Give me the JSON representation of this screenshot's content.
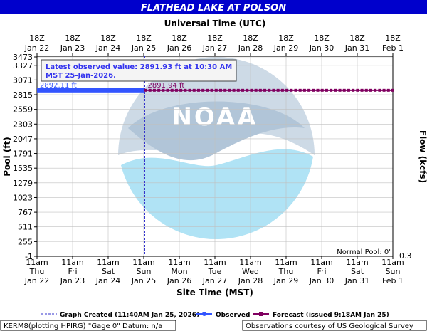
{
  "chart_data": {
    "type": "line",
    "title": "FLATHEAD LAKE AT POLSON",
    "top_axis_title": "Universal Time (UTC)",
    "xlabel": "Site Time (MST)",
    "ylabel": "Pool (ft)",
    "ylabel_right": "Flow (kcfs)",
    "y_ticks": [
      "3473",
      "3327",
      "3071",
      "2815",
      "2559",
      "2303",
      "2047",
      "1791",
      "1535",
      "1279",
      "1023",
      "767",
      "511",
      "255",
      "-1"
    ],
    "ylim": [
      -1,
      3473
    ],
    "right_tick": "0.3",
    "top_ticks": [
      {
        "hour": "18Z",
        "date": "Jan 22"
      },
      {
        "hour": "18Z",
        "date": "Jan 23"
      },
      {
        "hour": "18Z",
        "date": "Jan 24"
      },
      {
        "hour": "18Z",
        "date": "Jan 25"
      },
      {
        "hour": "18Z",
        "date": "Jan 26"
      },
      {
        "hour": "18Z",
        "date": "Jan 27"
      },
      {
        "hour": "18Z",
        "date": "Jan 28"
      },
      {
        "hour": "18Z",
        "date": "Jan 29"
      },
      {
        "hour": "18Z",
        "date": "Jan 30"
      },
      {
        "hour": "18Z",
        "date": "Jan 31"
      },
      {
        "hour": "18Z",
        "date": "Feb  1"
      }
    ],
    "bottom_ticks": [
      {
        "time": "11am",
        "dow": "Thu",
        "date": "Jan 22"
      },
      {
        "time": "11am",
        "dow": "Fri",
        "date": "Jan 23"
      },
      {
        "time": "11am",
        "dow": "Sat",
        "date": "Jan 24"
      },
      {
        "time": "11am",
        "dow": "Sun",
        "date": "Jan 25"
      },
      {
        "time": "11am",
        "dow": "Mon",
        "date": "Jan 26"
      },
      {
        "time": "11am",
        "dow": "Tue",
        "date": "Jan 27"
      },
      {
        "time": "11am",
        "dow": "Wed",
        "date": "Jan 28"
      },
      {
        "time": "11am",
        "dow": "Thu",
        "date": "Jan 29"
      },
      {
        "time": "11am",
        "dow": "Fri",
        "date": "Jan 30"
      },
      {
        "time": "11am",
        "dow": "Sat",
        "date": "Jan 31"
      },
      {
        "time": "11am",
        "dow": "Sun",
        "date": "Feb  1"
      }
    ],
    "x_range_days": [
      0,
      10
    ],
    "series": [
      {
        "name": "Observed",
        "color": "#3355ff",
        "x_days": [
          0,
          3.0
        ],
        "y": [
          2892.11,
          2891.93
        ],
        "label": "2892.11 ft"
      },
      {
        "name": "Forecast",
        "color": "#800060",
        "x_days": [
          3.05,
          10
        ],
        "y": [
          2891.94,
          2891.94
        ],
        "label": "2891.94 ft"
      }
    ],
    "graph_created_day": 3.03,
    "annotation": {
      "line1": "Latest observed value: 2891.93 ft at 10:30 AM",
      "line2": "MST 25-Jan-2026."
    },
    "normal_pool": "Normal Pool: 0'",
    "watermark": "NOAA",
    "legend": {
      "graph_created": "Graph Created (11:40AM Jan 25, 2026)",
      "observed": "Observed",
      "forecast": "Forecast (issued 9:18AM Jan 25)"
    },
    "footer_left": "KERM8(plotting HPIRG) \"Gage 0\" Datum: n/a",
    "footer_right": "Observations courtesy of US Geological Survey",
    "colors": {
      "banner": "#0000cc",
      "observed": "#3355ff",
      "forecast": "#800060",
      "grid": "#bbbbbb"
    }
  }
}
